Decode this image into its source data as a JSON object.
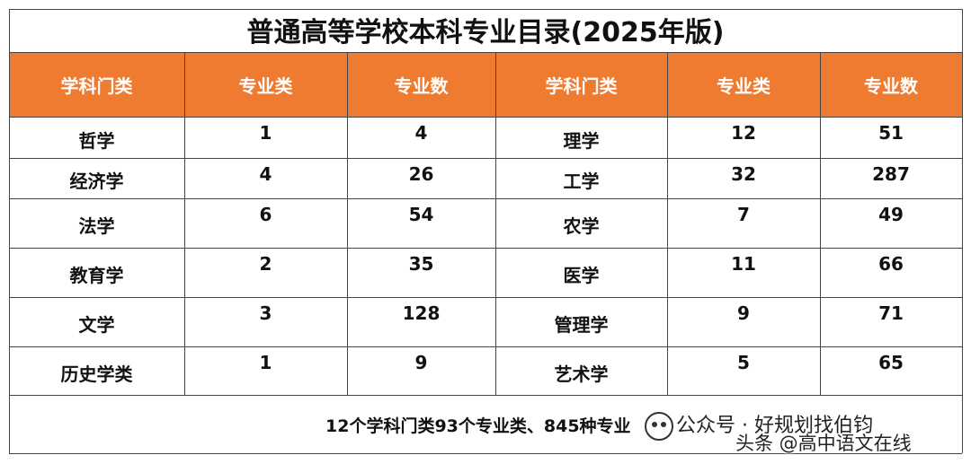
{
  "title": "普通高等学校本科专业目录(2025年版)",
  "table": {
    "header": [
      "学科门类",
      "专业类",
      "专业数",
      "学科门类",
      "专业类",
      "专业数"
    ],
    "rows": [
      [
        "哲学",
        1,
        4,
        "理学",
        12,
        51
      ],
      [
        "经济学",
        4,
        26,
        "工学",
        32,
        287
      ],
      [
        "法学",
        6,
        54,
        "农学",
        7,
        49
      ],
      [
        "教育学",
        2,
        35,
        "医学",
        11,
        66
      ],
      [
        "文学",
        3,
        128,
        "管理学",
        9,
        71
      ],
      [
        "历史学类",
        1,
        9,
        "艺术学",
        5,
        65
      ]
    ],
    "footer": "12个学科门类93个专业类、845种专业"
  },
  "watermark": {
    "line1": "公众号 · 好规划找伯钧",
    "line2": "头条 @高中语文在线"
  }
}
